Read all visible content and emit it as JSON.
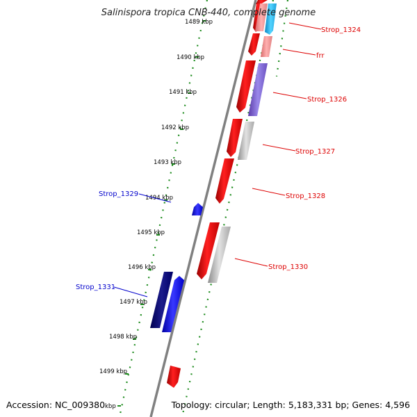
{
  "title": "Salinispora tropica CNB-440, complete genome",
  "footer": {
    "accession": "Accession: NC_009380",
    "summary": "Topology: circular; Length: 5,183,331 bp; Genes: 4,596"
  },
  "colors": {
    "backbone": "#808080",
    "tick": "#1e8c1e",
    "forward_label": "#dd0000",
    "reverse_label": "#0000cc"
  },
  "kbp_labels": [
    "1489 kbp",
    "1490 kbp",
    "1491 kbp",
    "1492 kbp",
    "1493 kbp",
    "1494 kbp",
    "1495 kbp",
    "1496 kbp",
    "1497 kbp",
    "1498 kbp",
    "1499 kbp",
    "kbp"
  ],
  "gene_labels": [
    {
      "text": "Strop_1324",
      "color": "#dd0000"
    },
    {
      "text": "frr",
      "color": "#dd0000"
    },
    {
      "text": "Strop_1326",
      "color": "#dd0000"
    },
    {
      "text": "Strop_1327",
      "color": "#dd0000"
    },
    {
      "text": "Strop_1328",
      "color": "#dd0000"
    },
    {
      "text": "Strop_1329",
      "color": "#0000cc"
    },
    {
      "text": "Strop_1330",
      "color": "#dd0000"
    },
    {
      "text": "Strop_1331",
      "color": "#0000cc"
    }
  ]
}
